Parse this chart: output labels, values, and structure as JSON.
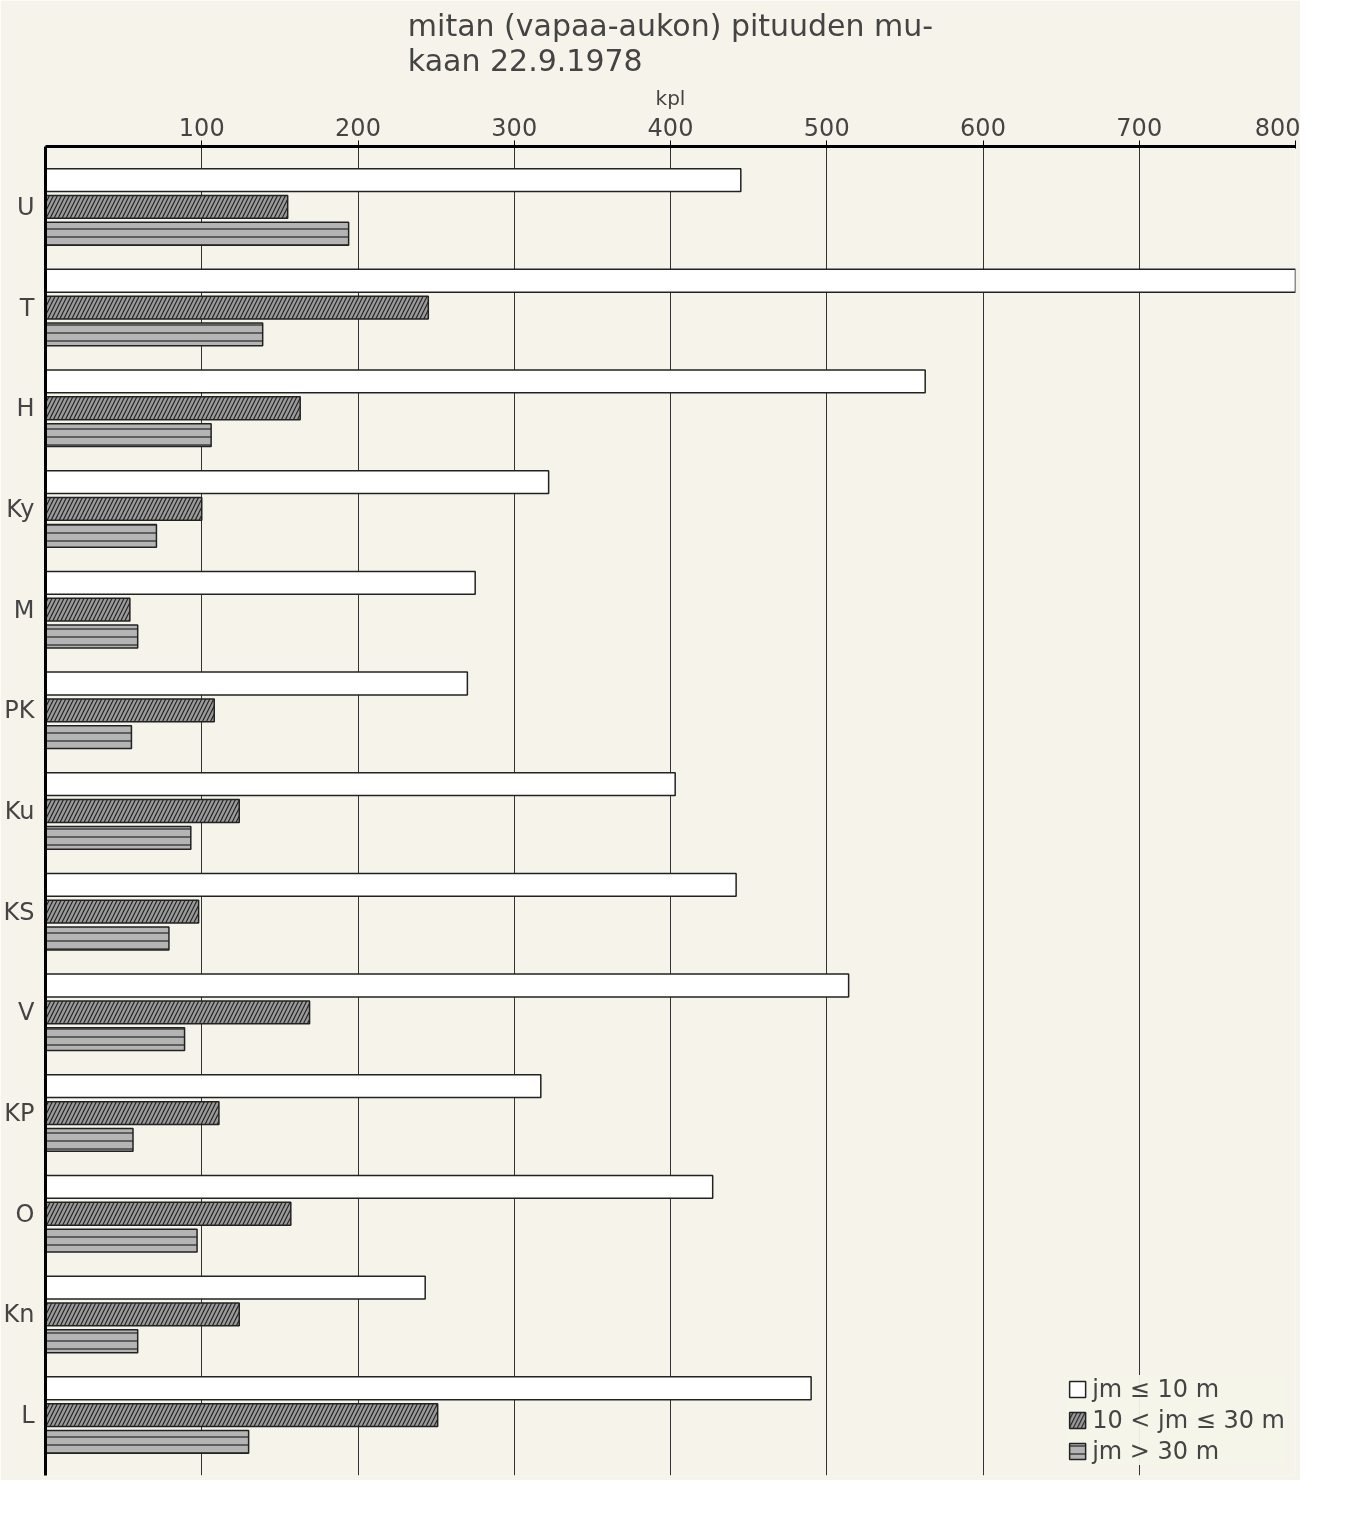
{
  "chart_data": {
    "type": "bar",
    "orientation": "horizontal",
    "title": "mitan (vapaa-aukon) pituuden mu-\nkaan 22.9.1978",
    "xlabel": "kpl",
    "categories": [
      "U",
      "T",
      "H",
      "Ky",
      "M",
      "PK",
      "Ku",
      "KS",
      "V",
      "KP",
      "O",
      "Kn",
      "L"
    ],
    "series": [
      {
        "name": "jm ≤ 10 m",
        "color": "#ffffff",
        "values": [
          445,
          800,
          563,
          322,
          275,
          270,
          403,
          442,
          514,
          317,
          427,
          243,
          490
        ]
      },
      {
        "name": "10 < jm ≤ 30 m",
        "color": "#9a9a9a",
        "values": [
          155,
          245,
          163,
          100,
          54,
          108,
          124,
          98,
          169,
          111,
          157,
          124,
          251
        ]
      },
      {
        "name": "jm > 30 m",
        "color": "#b4b4b4",
        "values": [
          194,
          139,
          106,
          71,
          59,
          55,
          93,
          79,
          89,
          56,
          97,
          59,
          130
        ]
      }
    ],
    "xlim": [
      0,
      800
    ],
    "xticks": [
      100,
      200,
      300,
      400,
      500,
      600,
      700,
      800
    ],
    "grid": "x",
    "legend": "bottom right"
  }
}
